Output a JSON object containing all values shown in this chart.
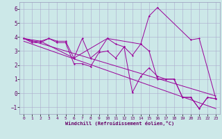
{
  "xlabel": "Windchill (Refroidissement éolien,°C)",
  "xlim": [
    -0.5,
    23.5
  ],
  "ylim": [
    -1.5,
    6.5
  ],
  "yticks": [
    -1,
    0,
    1,
    2,
    3,
    4,
    5,
    6
  ],
  "xticks": [
    0,
    1,
    2,
    3,
    4,
    5,
    6,
    7,
    8,
    9,
    10,
    11,
    12,
    13,
    14,
    15,
    16,
    17,
    18,
    19,
    20,
    21,
    22,
    23
  ],
  "bg_color": "#cce8e8",
  "line_color": "#990099",
  "series1_x": [
    0,
    1,
    2,
    3,
    4,
    5,
    6,
    7,
    8,
    9,
    10,
    11,
    12,
    13,
    14,
    15,
    16,
    17,
    18,
    19,
    20,
    21,
    22,
    23
  ],
  "series1_y": [
    3.9,
    3.7,
    3.7,
    3.9,
    3.7,
    3.7,
    2.5,
    3.9,
    2.5,
    3.0,
    3.9,
    3.5,
    3.3,
    2.7,
    3.5,
    3.0,
    1.0,
    1.0,
    1.0,
    -0.3,
    -0.3,
    -1.1,
    -0.3,
    -0.4
  ],
  "series2_x": [
    0,
    1,
    2,
    3,
    4,
    5,
    6,
    7,
    8,
    9,
    10,
    11,
    12,
    13,
    14,
    15,
    16,
    17,
    18,
    19,
    20,
    21,
    22,
    23
  ],
  "series2_y": [
    3.9,
    3.6,
    3.6,
    3.9,
    3.6,
    3.6,
    2.1,
    2.1,
    1.9,
    2.9,
    3.0,
    2.5,
    3.3,
    0.05,
    1.2,
    1.8,
    1.2,
    1.0,
    1.0,
    -0.3,
    -0.3,
    -1.1,
    -0.3,
    -0.4
  ],
  "series3_x": [
    0,
    2,
    6,
    10,
    14,
    15,
    16,
    20,
    21,
    23
  ],
  "series3_y": [
    3.9,
    3.7,
    2.5,
    3.9,
    3.5,
    5.5,
    6.1,
    3.8,
    3.9,
    -0.4
  ],
  "trend1_x": [
    0,
    23
  ],
  "trend1_y": [
    3.9,
    -0.2
  ],
  "trend2_x": [
    0,
    23
  ],
  "trend2_y": [
    3.7,
    -1.1
  ]
}
